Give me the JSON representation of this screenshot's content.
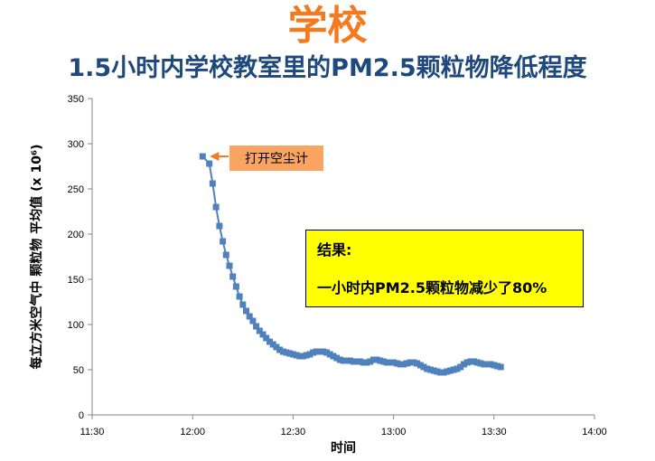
{
  "heading": {
    "title": "学校",
    "subtitle": "1.5小时内学校教室里的PM2.5颗粒物降低程度"
  },
  "colors": {
    "title": "#f47a20",
    "subtitle": "#1f497d",
    "series": "#4f81bd",
    "callout_bg": "#f9a460",
    "callout_arrow": "#f47a20",
    "result_bg": "#ffff00"
  },
  "callout": {
    "text": "打开空尘计"
  },
  "result_box": {
    "title": "结果:",
    "text": "一小时内PM2.5颗粒物减少了80%"
  },
  "chart_data": {
    "type": "line",
    "xlabel": "时间",
    "ylabel": "每立方米空气中 颗粒物 平均值 (x 10⁶)",
    "x_ticks": [
      "11:30",
      "12:00",
      "12:30",
      "13:00",
      "13:30",
      "14:00"
    ],
    "xlim": [
      "11:30",
      "14:00"
    ],
    "ylim": [
      0,
      350
    ],
    "y_ticks": [
      0,
      50,
      100,
      150,
      200,
      250,
      300,
      350
    ],
    "grid": false,
    "marker": "square",
    "series": [
      {
        "x": [
          "12:03",
          "12:05",
          "12:06",
          "12:07",
          "12:08",
          "12:09",
          "12:10",
          "12:11",
          "12:12",
          "12:13",
          "12:14",
          "12:15",
          "12:16",
          "12:17",
          "12:18",
          "12:19",
          "12:20",
          "12:21",
          "12:22",
          "12:23",
          "12:24",
          "12:25",
          "12:26",
          "12:27",
          "12:28",
          "12:29",
          "12:30",
          "12:31",
          "12:32",
          "12:33",
          "12:34",
          "12:35",
          "12:36",
          "12:37",
          "12:38",
          "12:39",
          "12:40",
          "12:41",
          "12:42",
          "12:43",
          "12:44",
          "12:45",
          "12:46",
          "12:47",
          "12:48",
          "12:49",
          "12:50",
          "12:51",
          "12:52",
          "12:53",
          "12:54",
          "12:55",
          "12:56",
          "12:57",
          "12:58",
          "12:59",
          "13:00",
          "13:01",
          "13:02",
          "13:03",
          "13:04",
          "13:05",
          "13:06",
          "13:07",
          "13:08",
          "13:09",
          "13:10",
          "13:11",
          "13:12",
          "13:13",
          "13:14",
          "13:15",
          "13:16",
          "13:17",
          "13:18",
          "13:19",
          "13:20",
          "13:21",
          "13:22",
          "13:23",
          "13:24",
          "13:25",
          "13:26",
          "13:27",
          "13:28",
          "13:29",
          "13:30",
          "13:31",
          "13:32"
        ],
        "values": [
          286,
          278,
          256,
          230,
          209,
          192,
          177,
          165,
          153,
          142,
          131,
          122,
          115,
          109,
          104,
          98,
          93,
          89,
          85,
          81,
          78,
          75,
          72,
          70,
          69,
          68,
          67,
          66,
          65,
          65,
          66,
          67,
          69,
          70,
          70,
          70,
          69,
          67,
          65,
          63,
          61,
          60,
          60,
          60,
          59,
          59,
          59,
          58,
          58,
          59,
          61,
          61,
          60,
          59,
          58,
          58,
          58,
          57,
          56,
          56,
          57,
          58,
          58,
          57,
          55,
          53,
          51,
          50,
          49,
          48,
          47,
          47,
          48,
          49,
          50,
          51,
          53,
          56,
          58,
          59,
          59,
          58,
          57,
          56,
          56,
          56,
          55,
          54,
          53
        ]
      }
    ],
    "annotations": [
      {
        "text": "打开空尘计",
        "at": {
          "x": "12:03",
          "y": 286
        }
      }
    ]
  }
}
